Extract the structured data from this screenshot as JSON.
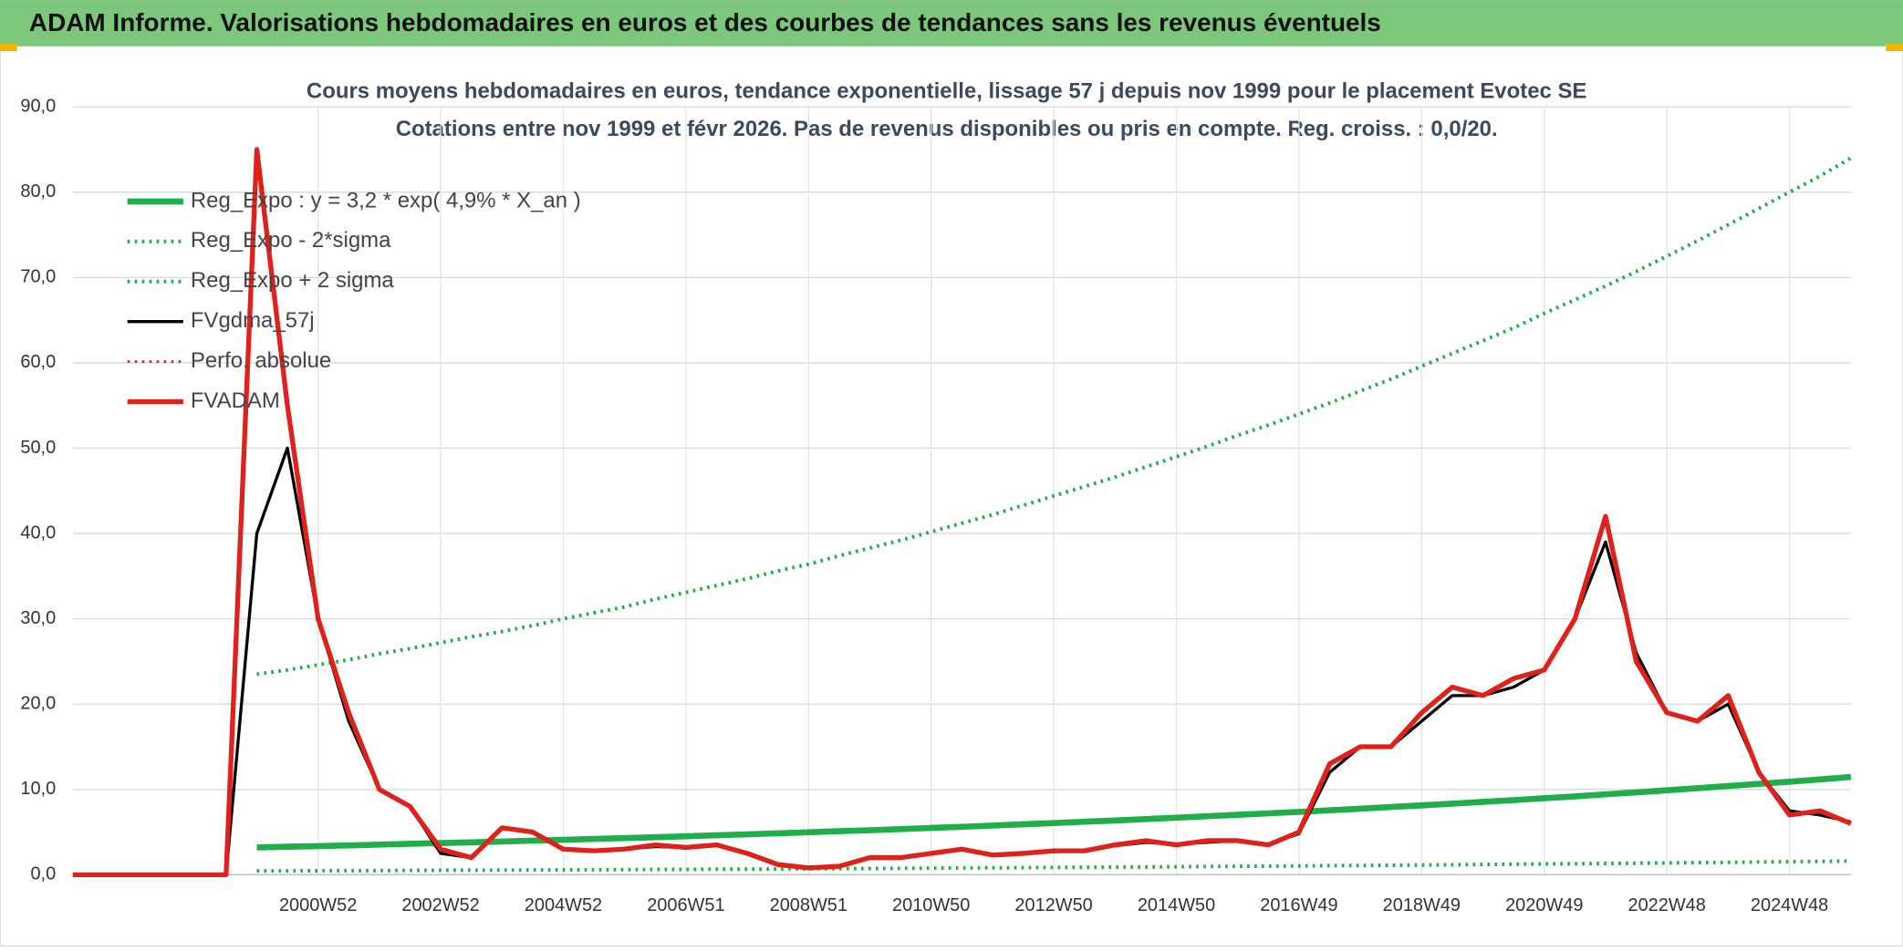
{
  "header": {
    "title": "ADAM Informe. Valorisations hebdomadaires en euros et des courbes de tendances sans les revenus éventuels"
  },
  "chart_data": {
    "type": "line",
    "title": "Cours moyens hebdomadaires en euros, tendance exponentielle, lissage 57 j depuis nov 1999 pour le placement Evotec SE",
    "subtitle": "Cotations entre nov 1999 et févr 2026. Pas de revenus disponibles ou pris en compte. Reg. croiss. : 0,0/20.",
    "categories": [
      null,
      null,
      null,
      null,
      null,
      null,
      null,
      null,
      "2000W52",
      null,
      null,
      null,
      "2002W52",
      null,
      null,
      null,
      "2004W52",
      null,
      null,
      null,
      "2006W51",
      null,
      null,
      null,
      "2008W51",
      null,
      null,
      null,
      "2010W50",
      null,
      null,
      null,
      "2012W50",
      null,
      null,
      null,
      "2014W50",
      null,
      null,
      null,
      "2016W49",
      null,
      null,
      null,
      "2018W49",
      null,
      null,
      null,
      "2020W49",
      null,
      null,
      null,
      "2022W48",
      null,
      null,
      null,
      "2024W48",
      null,
      null
    ],
    "ylim": [
      0,
      90
    ],
    "yticks": [
      {
        "value": 0,
        "label": "0,0"
      },
      {
        "value": 10,
        "label": "10,0"
      },
      {
        "value": 20,
        "label": "20,0"
      },
      {
        "value": 30,
        "label": "30,0"
      },
      {
        "value": 40,
        "label": "40,0"
      },
      {
        "value": 50,
        "label": "50,0"
      },
      {
        "value": 60,
        "label": "60,0"
      },
      {
        "value": 70,
        "label": "70,0"
      },
      {
        "value": 80,
        "label": "80,0"
      },
      {
        "value": 90,
        "label": "90,0"
      }
    ],
    "grid": true,
    "legend": "top-left",
    "series": [
      {
        "name": "Reg_Expo : y = 3,2 * exp( 4,9% *  X_an )",
        "color": "#1fae4a",
        "width": 5,
        "dash": false,
        "values": [
          null,
          null,
          null,
          null,
          null,
          null,
          3.2,
          3.28,
          3.36,
          3.44,
          3.53,
          3.62,
          3.71,
          3.8,
          3.89,
          3.99,
          4.09,
          4.19,
          4.29,
          4.4,
          4.51,
          4.62,
          4.74,
          4.85,
          4.97,
          5.1,
          5.22,
          5.35,
          5.49,
          5.62,
          5.76,
          5.91,
          6.06,
          6.21,
          6.36,
          6.52,
          6.68,
          6.85,
          7.02,
          7.19,
          7.37,
          7.55,
          7.74,
          7.93,
          8.13,
          8.33,
          8.54,
          8.75,
          8.97,
          9.19,
          9.42,
          9.65,
          9.89,
          10.14,
          10.39,
          10.65,
          10.91,
          11.18,
          11.46
        ]
      },
      {
        "name": "Reg_Expo - 2*sigma",
        "color": "#1fae4a",
        "width": 3,
        "dash": true,
        "values": [
          null,
          null,
          null,
          null,
          null,
          null,
          0.45,
          0.46,
          0.47,
          0.48,
          0.49,
          0.51,
          0.52,
          0.53,
          0.54,
          0.56,
          0.57,
          0.59,
          0.6,
          0.62,
          0.63,
          0.65,
          0.66,
          0.68,
          0.7,
          0.71,
          0.73,
          0.75,
          0.77,
          0.79,
          0.81,
          0.83,
          0.85,
          0.87,
          0.89,
          0.91,
          0.94,
          0.96,
          0.98,
          1.01,
          1.03,
          1.06,
          1.08,
          1.11,
          1.14,
          1.17,
          1.2,
          1.23,
          1.26,
          1.29,
          1.32,
          1.35,
          1.38,
          1.42,
          1.45,
          1.49,
          1.53,
          1.57,
          1.6
        ]
      },
      {
        "name": "Reg_Expo + 2 sigma",
        "color": "#1fae4a",
        "width": 3,
        "dash": true,
        "values": [
          null,
          null,
          null,
          null,
          null,
          null,
          23.5,
          24.0,
          24.6,
          25.2,
          25.9,
          26.5,
          27.2,
          27.9,
          28.5,
          29.2,
          30.0,
          30.7,
          31.4,
          32.3,
          33.1,
          33.9,
          34.7,
          35.6,
          36.4,
          37.4,
          38.3,
          39.2,
          40.2,
          41.2,
          42.2,
          43.3,
          44.4,
          45.5,
          46.6,
          47.8,
          49.0,
          50.2,
          51.5,
          52.7,
          54.0,
          55.3,
          56.7,
          58.1,
          59.6,
          61.1,
          62.6,
          64.1,
          65.8,
          67.4,
          69.0,
          70.7,
          72.5,
          74.3,
          76.2,
          78.1,
          80.0,
          81.9,
          84.0
        ]
      },
      {
        "name": "FVgdma_57j",
        "color": "#000000",
        "width": 2.5,
        "dash": false,
        "values": [
          0,
          0,
          0,
          0,
          0,
          0,
          40,
          50,
          30,
          18,
          10,
          8,
          2.5,
          2,
          5.5,
          5,
          3,
          2.8,
          3,
          3.3,
          3.2,
          3.4,
          2.5,
          1.3,
          0.9,
          1,
          2,
          2,
          2.5,
          2.9,
          2.4,
          2.5,
          2.7,
          2.8,
          3.4,
          3.8,
          3.6,
          3.8,
          4,
          3.6,
          4.8,
          12,
          15,
          15,
          18,
          21,
          21,
          22,
          24,
          30,
          39,
          26,
          19,
          18,
          20,
          12,
          7.5,
          7,
          6.2
        ]
      },
      {
        "name": "Perfo. absolue",
        "color": "#e0201b",
        "width": 2,
        "dash": true,
        "values": [
          null,
          null,
          null,
          null,
          null,
          null,
          null,
          null,
          null,
          null,
          null,
          null,
          null,
          null,
          null,
          null,
          null,
          null,
          null,
          null,
          null,
          null,
          null,
          null,
          null,
          null,
          null,
          null,
          null,
          null,
          null,
          null,
          null,
          null,
          null,
          null,
          null,
          null,
          null,
          null,
          null,
          null,
          null,
          null,
          null,
          null,
          null,
          null,
          null,
          null,
          null,
          null,
          null,
          null,
          null,
          null,
          null,
          null,
          null
        ]
      },
      {
        "name": "FVADAM",
        "color": "#e0201b",
        "width": 4,
        "dash": false,
        "values": [
          0,
          0,
          0,
          0,
          0,
          0,
          85,
          55,
          30,
          19,
          10,
          8,
          3,
          2,
          5.5,
          5,
          3,
          2.8,
          3,
          3.5,
          3.2,
          3.5,
          2.5,
          1.2,
          0.8,
          1,
          2,
          2,
          2.5,
          3,
          2.3,
          2.5,
          2.8,
          2.8,
          3.5,
          4,
          3.5,
          4,
          4,
          3.5,
          5,
          13,
          15,
          15,
          19,
          22,
          21,
          23,
          24,
          30,
          42,
          25,
          19,
          18,
          21,
          12,
          7,
          7.5,
          6
        ]
      }
    ]
  }
}
